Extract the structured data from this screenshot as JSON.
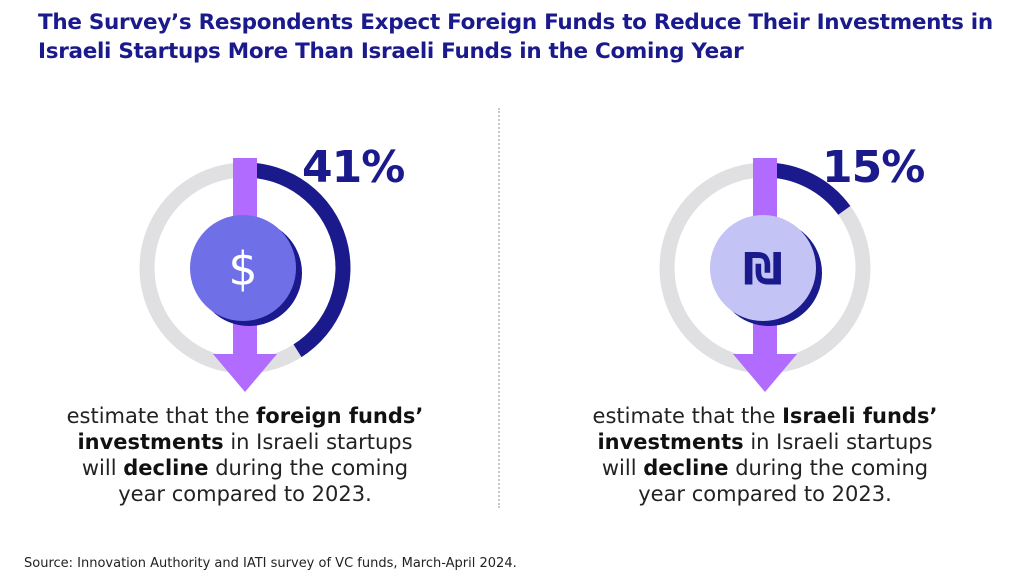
{
  "title": "The Survey’s Respondents Expect Foreign Funds to Reduce Their Investments in Israeli Startups More Than Israeli Funds in the Coming Year",
  "source": "Source: Innovation Authority and IATI survey of VC funds, March-April 2024.",
  "colors": {
    "ring_bg": "#e0e0e3",
    "ring_fill": "#1a1a8c",
    "arrow": "#b26bff",
    "dollar_coin": "#6f6fe8",
    "shekel_coin": "#c3c3f5"
  },
  "chart_data": [
    {
      "type": "donut",
      "value": 41,
      "value_label": "41%",
      "icon": "dollar-coin-icon",
      "symbol": "$",
      "caption": {
        "p1": "estimate that the ",
        "b1": "foreign funds’",
        "b2": "investments",
        "p2": " in Israeli startups",
        "p3": "will ",
        "b3": "decline",
        "p4": " during the coming",
        "p5": "year compared to 2023."
      }
    },
    {
      "type": "donut",
      "value": 15,
      "value_label": "15%",
      "icon": "shekel-coin-icon",
      "symbol": "₪",
      "caption": {
        "p1": "estimate that the ",
        "b1": "Israeli funds’",
        "b2": "investments",
        "p2": " in Israeli startups",
        "p3": "will ",
        "b3": "decline",
        "p4": " during the coming",
        "p5": "year compared to 2023."
      }
    }
  ]
}
